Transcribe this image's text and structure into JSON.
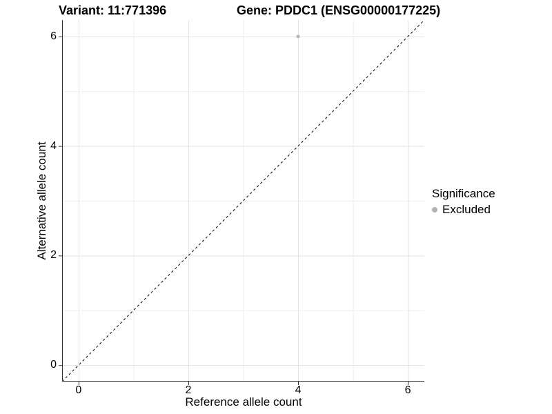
{
  "chart_data": {
    "type": "scatter",
    "title_left": "Variant: 11:771396",
    "title_right": "Gene: PDDC1 (ENSG00000177225)",
    "xlabel": "Reference allele count",
    "ylabel": "Alternative allele count",
    "xlim": [
      -0.3,
      6.3
    ],
    "ylim": [
      -0.3,
      6.3
    ],
    "major_ticks": [
      0,
      2,
      4,
      6
    ],
    "minor_ticks": [
      1,
      3,
      5
    ],
    "grid": true,
    "legend_position": "right",
    "identity_line": {
      "style": "dashed",
      "dash": [
        3.5,
        3.5
      ],
      "color": "#000000"
    },
    "points": [
      {
        "x": 4,
        "y": 6,
        "significance": "Excluded"
      }
    ],
    "legend": {
      "title": "Significance",
      "items": [
        {
          "label": "Excluded",
          "color": "#b3b3b3"
        }
      ]
    },
    "colors": {
      "point": "#b6b6b6",
      "grid_major": "#e2e2e2",
      "grid_minor": "#eeeeee",
      "axis_line": "#333333",
      "text": "#000000"
    }
  }
}
